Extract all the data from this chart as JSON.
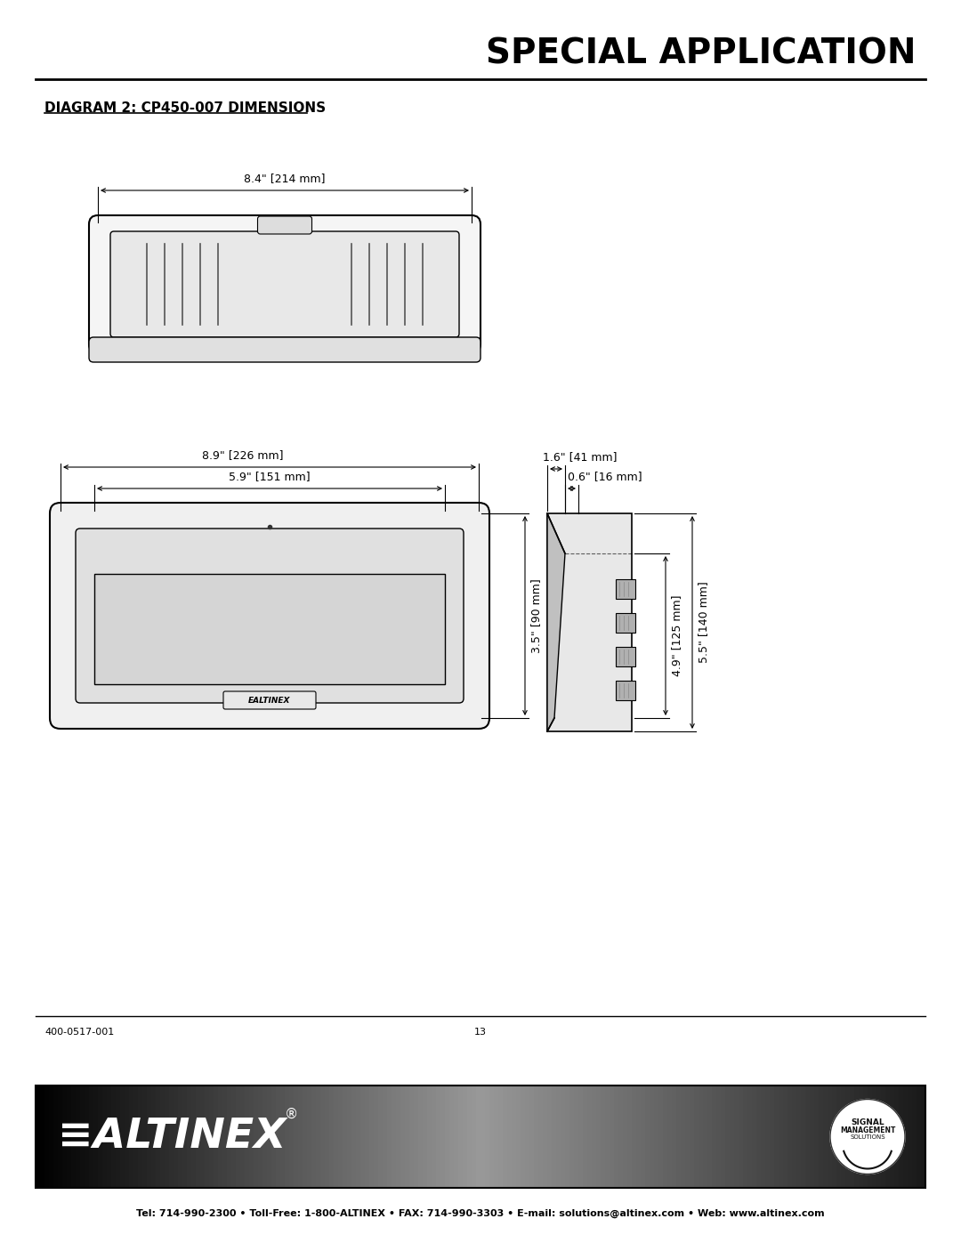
{
  "title": "SPECIAL APPLICATION",
  "diagram_title": "DIAGRAM 2: CP450-007 DIMENSIONS",
  "page_number": "13",
  "doc_number": "400-0517-001",
  "footer_text": "Tel: 714-990-2300 • Toll-Free: 1-800-ALTINEX • FAX: 714-990-3303 • E-mail: solutions@altinex.com • Web: www.altinex.com",
  "dim_top_width": "8.4\" [214 mm]",
  "dim_front_width": "8.9\" [226 mm]",
  "dim_front_inner_width": "5.9\" [151 mm]",
  "dim_front_height": "3.5\" [90 mm]",
  "dim_side_depth1": "1.6\" [41 mm]",
  "dim_side_depth2": "0.6\" [16 mm]",
  "dim_side_height1": "4.9\" [125 mm]",
  "dim_side_height2": "5.5\" [140 mm]",
  "bg_color": "#ffffff",
  "line_color": "#000000",
  "text_color": "#000000",
  "gray_color": "#888888",
  "light_gray": "#cccccc"
}
